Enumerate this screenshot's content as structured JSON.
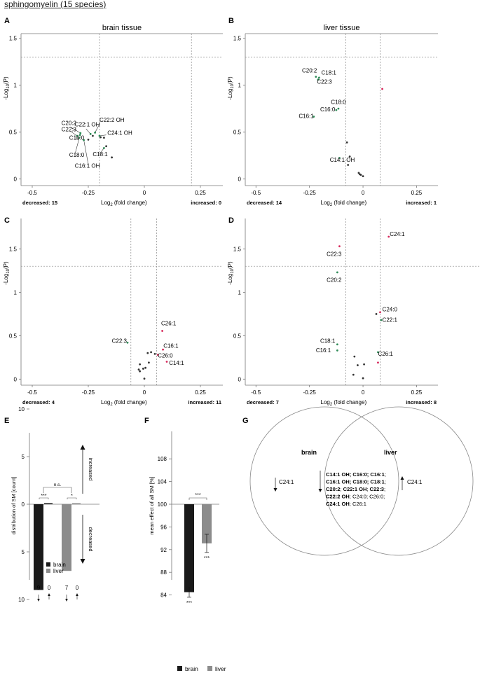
{
  "figure_title": "sphingomyelin (15 species)",
  "colors": {
    "decreased": "#2e8b57",
    "increased": "#d6275a",
    "neutral": "#333333",
    "brain": "#1a1a1a",
    "liver": "#8c8c8c",
    "threshold": "#888888"
  },
  "volcano_common": {
    "xlabel_pre": "Log",
    "xlabel_sub": "2",
    "xlabel_post": " (fold change)",
    "ylabel_pre": "-Log",
    "ylabel_sub": "10",
    "ylabel_post": "(P)",
    "x_ticks": [
      "-0.5",
      "-0.25",
      "0",
      "0.25"
    ],
    "y_ticks": [
      "0",
      "0.5",
      "1",
      "1.5"
    ]
  },
  "chart_data": [
    {
      "panel": "A",
      "type": "scatter",
      "title": "brain tissue",
      "xlim": [
        -0.55,
        0.35
      ],
      "ylim": [
        -0.07,
        1.55
      ],
      "threshold_x": [
        -0.2,
        0.21
      ],
      "threshold_y": 1.3,
      "decreased_label": "decreased: 15",
      "increased_label": "increased: 0",
      "points": [
        {
          "x": -0.285,
          "y": 0.49,
          "c": "d"
        },
        {
          "x": -0.287,
          "y": 0.47,
          "c": "d"
        },
        {
          "x": -0.3,
          "y": 0.46,
          "c": "d"
        },
        {
          "x": -0.29,
          "y": 0.44,
          "c": "d"
        },
        {
          "x": -0.24,
          "y": 0.48,
          "c": "d"
        },
        {
          "x": -0.22,
          "y": 0.495,
          "c": "d"
        },
        {
          "x": -0.2,
          "y": 0.46,
          "c": "d"
        },
        {
          "x": -0.27,
          "y": 0.415,
          "c": "d"
        },
        {
          "x": -0.18,
          "y": 0.33,
          "c": "d"
        },
        {
          "x": -0.23,
          "y": 0.46,
          "c": "n"
        },
        {
          "x": -0.195,
          "y": 0.445,
          "c": "n"
        },
        {
          "x": -0.18,
          "y": 0.44,
          "c": "n"
        },
        {
          "x": -0.17,
          "y": 0.35,
          "c": "n"
        },
        {
          "x": -0.145,
          "y": 0.23,
          "c": "n"
        },
        {
          "x": -0.25,
          "y": 0.42,
          "c": "n"
        }
      ],
      "labels": [
        {
          "text": "C20:2",
          "x": -0.37,
          "y": 0.575
        },
        {
          "text": "C22:1 OH",
          "x": -0.31,
          "y": 0.56
        },
        {
          "text": "C22:2 OH",
          "x": -0.2,
          "y": 0.61
        },
        {
          "text": "C22:3",
          "x": -0.37,
          "y": 0.51
        },
        {
          "text": "C24:1 OH",
          "x": -0.165,
          "y": 0.47
        },
        {
          "text": "C16:0",
          "x": -0.335,
          "y": 0.42
        },
        {
          "text": "C18:0",
          "x": -0.335,
          "y": 0.235
        },
        {
          "text": "C18:1",
          "x": -0.23,
          "y": 0.245
        },
        {
          "text": "C16:1 OH",
          "x": -0.31,
          "y": 0.12
        }
      ],
      "leaders": [
        {
          "x1": -0.33,
          "y1": 0.555,
          "x2": -0.285,
          "y2": 0.49
        },
        {
          "x1": -0.26,
          "y1": 0.535,
          "x2": -0.24,
          "y2": 0.48
        },
        {
          "x1": -0.2,
          "y1": 0.585,
          "x2": -0.22,
          "y2": 0.495
        },
        {
          "x1": -0.33,
          "y1": 0.51,
          "x2": -0.3,
          "y2": 0.46
        },
        {
          "x1": -0.17,
          "y1": 0.47,
          "x2": -0.2,
          "y2": 0.46
        },
        {
          "x1": -0.305,
          "y1": 0.42,
          "x2": -0.29,
          "y2": 0.44
        },
        {
          "x1": -0.31,
          "y1": 0.26,
          "x2": -0.29,
          "y2": 0.44
        },
        {
          "x1": -0.2,
          "y1": 0.265,
          "x2": -0.18,
          "y2": 0.33
        },
        {
          "x1": -0.25,
          "y1": 0.155,
          "x2": -0.27,
          "y2": 0.415
        }
      ]
    },
    {
      "panel": "B",
      "type": "scatter",
      "title": "liver tissue",
      "xlim": [
        -0.55,
        0.35
      ],
      "ylim": [
        -0.07,
        1.55
      ],
      "threshold_x": [
        -0.08,
        0.08
      ],
      "threshold_y": 1.3,
      "decreased_label": "decreased: 14",
      "increased_label": "increased: 1",
      "points": [
        {
          "x": -0.22,
          "y": 1.09,
          "c": "d"
        },
        {
          "x": -0.205,
          "y": 1.08,
          "c": "d"
        },
        {
          "x": -0.21,
          "y": 1.06,
          "c": "d"
        },
        {
          "x": -0.115,
          "y": 0.75,
          "c": "d"
        },
        {
          "x": -0.125,
          "y": 0.735,
          "c": "d"
        },
        {
          "x": -0.23,
          "y": 0.665,
          "c": "d"
        },
        {
          "x": -0.11,
          "y": 0.225,
          "c": "d"
        },
        {
          "x": -0.075,
          "y": 0.39,
          "c": "n"
        },
        {
          "x": -0.062,
          "y": 0.24,
          "c": "n"
        },
        {
          "x": -0.07,
          "y": 0.15,
          "c": "n"
        },
        {
          "x": -0.02,
          "y": 0.065,
          "c": "n"
        },
        {
          "x": -0.015,
          "y": 0.05,
          "c": "n"
        },
        {
          "x": -0.01,
          "y": 0.045,
          "c": "n"
        },
        {
          "x": 0.0,
          "y": 0.03,
          "c": "n"
        },
        {
          "x": 0.09,
          "y": 0.96,
          "c": "i"
        }
      ],
      "labels": [
        {
          "text": "C20:2",
          "x": -0.285,
          "y": 1.135
        },
        {
          "text": "C18:1",
          "x": -0.195,
          "y": 1.115
        },
        {
          "text": "C22:3",
          "x": -0.215,
          "y": 1.015
        },
        {
          "text": "C18:0",
          "x": -0.15,
          "y": 0.8
        },
        {
          "text": "C16:0",
          "x": -0.2,
          "y": 0.72
        },
        {
          "text": "C16:1",
          "x": -0.3,
          "y": 0.65
        },
        {
          "text": "C14:1 OH",
          "x": -0.155,
          "y": 0.185
        }
      ],
      "leaders": []
    },
    {
      "panel": "C",
      "type": "scatter",
      "title": "",
      "xlim": [
        -0.55,
        0.35
      ],
      "ylim": [
        -0.07,
        1.85
      ],
      "threshold_x": [
        -0.06,
        0.055
      ],
      "threshold_y": 1.3,
      "decreased_label": "decreased: 4",
      "increased_label": "increased: 11",
      "points": [
        {
          "x": -0.075,
          "y": 0.42,
          "c": "d"
        },
        {
          "x": 0.08,
          "y": 0.555,
          "c": "i"
        },
        {
          "x": 0.083,
          "y": 0.34,
          "c": "i"
        },
        {
          "x": 0.1,
          "y": 0.2,
          "c": "i"
        },
        {
          "x": 0.06,
          "y": 0.28,
          "c": "i"
        },
        {
          "x": 0.03,
          "y": 0.31,
          "c": "n"
        },
        {
          "x": 0.047,
          "y": 0.29,
          "c": "n"
        },
        {
          "x": 0.015,
          "y": 0.3,
          "c": "n"
        },
        {
          "x": 0.02,
          "y": 0.19,
          "c": "n"
        },
        {
          "x": -0.02,
          "y": 0.17,
          "c": "n"
        },
        {
          "x": 0.005,
          "y": 0.13,
          "c": "n"
        },
        {
          "x": -0.005,
          "y": 0.12,
          "c": "n"
        },
        {
          "x": -0.02,
          "y": 0.09,
          "c": "n"
        },
        {
          "x": -0.025,
          "y": 0.11,
          "c": "n"
        },
        {
          "x": 0.0,
          "y": 0.005,
          "c": "n"
        }
      ],
      "labels": [
        {
          "text": "C22:3",
          "x": -0.145,
          "y": 0.42
        },
        {
          "text": "C26:1",
          "x": 0.075,
          "y": 0.62
        },
        {
          "text": "C16:1",
          "x": 0.085,
          "y": 0.36
        },
        {
          "text": "C26:0",
          "x": 0.06,
          "y": 0.25
        },
        {
          "text": "C14:1",
          "x": 0.11,
          "y": 0.165
        }
      ],
      "leaders": []
    },
    {
      "panel": "D",
      "type": "scatter",
      "title": "",
      "xlim": [
        -0.55,
        0.35
      ],
      "ylim": [
        -0.07,
        1.85
      ],
      "threshold_x": [
        -0.08,
        0.08
      ],
      "threshold_y": 1.3,
      "decreased_label": "decreased: 7",
      "increased_label": "increased: 8",
      "points": [
        {
          "x": 0.12,
          "y": 1.64,
          "c": "i"
        },
        {
          "x": -0.11,
          "y": 1.53,
          "c": "i"
        },
        {
          "x": -0.12,
          "y": 1.23,
          "c": "d"
        },
        {
          "x": 0.08,
          "y": 0.77,
          "c": "i"
        },
        {
          "x": 0.085,
          "y": 0.68,
          "c": "d"
        },
        {
          "x": 0.07,
          "y": 0.31,
          "c": "d"
        },
        {
          "x": -0.12,
          "y": 0.4,
          "c": "d"
        },
        {
          "x": -0.12,
          "y": 0.33,
          "c": "d"
        },
        {
          "x": 0.062,
          "y": 0.75,
          "c": "n"
        },
        {
          "x": 0.07,
          "y": 0.19,
          "c": "i"
        },
        {
          "x": -0.04,
          "y": 0.26,
          "c": "n"
        },
        {
          "x": -0.025,
          "y": 0.16,
          "c": "n"
        },
        {
          "x": 0.005,
          "y": 0.17,
          "c": "n"
        },
        {
          "x": -0.045,
          "y": 0.05,
          "c": "n"
        },
        {
          "x": 0.0,
          "y": 0.01,
          "c": "n"
        }
      ],
      "labels": [
        {
          "text": "C24:1",
          "x": 0.125,
          "y": 1.65
        },
        {
          "text": "C22:3",
          "x": -0.17,
          "y": 1.42
        },
        {
          "text": "C20:2",
          "x": -0.17,
          "y": 1.12
        },
        {
          "text": "C24:0",
          "x": 0.09,
          "y": 0.78
        },
        {
          "text": "C22:1",
          "x": 0.09,
          "y": 0.66
        },
        {
          "text": "C18:1",
          "x": -0.2,
          "y": 0.42
        },
        {
          "text": "C16:1",
          "x": -0.22,
          "y": 0.31
        },
        {
          "text": "C26:1",
          "x": 0.07,
          "y": 0.27
        }
      ],
      "leaders": []
    },
    {
      "panel": "E",
      "type": "bar",
      "ylabel": "distribution of SM [count]",
      "y_ticks": [
        "10",
        "5",
        "0",
        "5",
        "10"
      ],
      "categories": [
        "brain",
        "liver"
      ],
      "series": [
        {
          "name": "brain",
          "decreased": 9,
          "increased": 0
        },
        {
          "name": "liver",
          "decreased": 7,
          "increased": 0
        }
      ],
      "significance": [
        "***",
        "*",
        "n.s."
      ],
      "counts": [
        "9",
        "0",
        "7",
        "0"
      ],
      "arrow_labels": [
        "increased",
        "decreased"
      ],
      "legend": [
        "brain",
        "liver"
      ]
    },
    {
      "panel": "F",
      "type": "bar",
      "ylabel": "mean effect of all SM [%]",
      "y_ticks": [
        "84",
        "88",
        "92",
        "96",
        "100",
        "104",
        "108"
      ],
      "ylim": [
        84,
        108
      ],
      "baseline": 100,
      "categories": [
        "brain",
        "liver"
      ],
      "values": [
        84.5,
        93.1
      ],
      "errors": [
        0.9,
        1.6
      ],
      "significance_bars": [
        "***",
        "***"
      ],
      "significance_pair": "***",
      "legend": [
        "brain",
        "liver"
      ]
    }
  ],
  "venn": {
    "panel": "G",
    "left_label": "brain",
    "right_label": "liver",
    "left_only": "C24:1",
    "right_only": "C24:1",
    "intersection": [
      [
        {
          "t": "C14:1 OH",
          "b": true
        },
        {
          "t": "; ",
          "b": true
        },
        {
          "t": "C16:0",
          "b": true
        },
        {
          "t": "; ",
          "b": true
        },
        {
          "t": "C16:1",
          "b": true
        },
        {
          "t": ";",
          "b": false
        }
      ],
      [
        {
          "t": "C16:1 OH",
          "b": true
        },
        {
          "t": "; ",
          "b": true
        },
        {
          "t": "C18:0",
          "b": true
        },
        {
          "t": "; ",
          "b": true
        },
        {
          "t": "C18:1",
          "b": true
        },
        {
          "t": ";",
          "b": false
        }
      ],
      [
        {
          "t": "C20:2",
          "b": true
        },
        {
          "t": "; ",
          "b": false
        },
        {
          "t": "C22:1 OH",
          "b": true
        },
        {
          "t": "; ",
          "b": false
        },
        {
          "t": "C22:3",
          "b": true
        },
        {
          "t": ";",
          "b": false
        }
      ],
      [
        {
          "t": "C22:2 OH",
          "b": true
        },
        {
          "t": "; ",
          "b": false
        },
        {
          "t": "C24:0",
          "b": false
        },
        {
          "t": "; ",
          "b": false
        },
        {
          "t": "C26:0",
          "b": false
        },
        {
          "t": ";",
          "b": false
        }
      ],
      [
        {
          "t": "C24:1 OH",
          "b": true
        },
        {
          "t": "; ",
          "b": false
        },
        {
          "t": "C26:1",
          "b": false
        }
      ]
    ]
  },
  "panel_letters": [
    "A",
    "B",
    "C",
    "D",
    "E",
    "F",
    "G"
  ]
}
